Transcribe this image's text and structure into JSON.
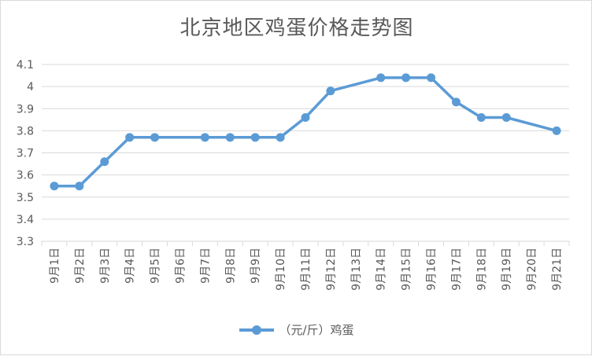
{
  "chart_data": {
    "type": "line",
    "title": "北京地区鸡蛋价格走势图",
    "categories": [
      "9月1日",
      "9月2日",
      "9月3日",
      "9月4日",
      "9月5日",
      "9月6日",
      "9月7日",
      "9月8日",
      "9月9日",
      "9月10日",
      "9月11日",
      "9月12日",
      "9月13日",
      "9月14日",
      "9月15日",
      "9月16日",
      "9月17日",
      "9月18日",
      "9月19日",
      "9月20日",
      "9月21日"
    ],
    "series": [
      {
        "name": "（元/斤）鸡蛋",
        "color": "#5b9bd5",
        "values": [
          3.55,
          3.55,
          3.66,
          3.77,
          3.77,
          null,
          3.77,
          3.77,
          3.77,
          3.77,
          3.86,
          3.98,
          null,
          4.04,
          4.04,
          4.04,
          3.93,
          3.86,
          3.86,
          null,
          3.8
        ]
      }
    ],
    "ylim": [
      3.3,
      4.1
    ],
    "yticks": [
      "3.3",
      "3.4",
      "3.5",
      "3.6",
      "3.7",
      "3.8",
      "3.9",
      "4",
      "4.1"
    ],
    "grid": true,
    "legend": "bottom"
  }
}
